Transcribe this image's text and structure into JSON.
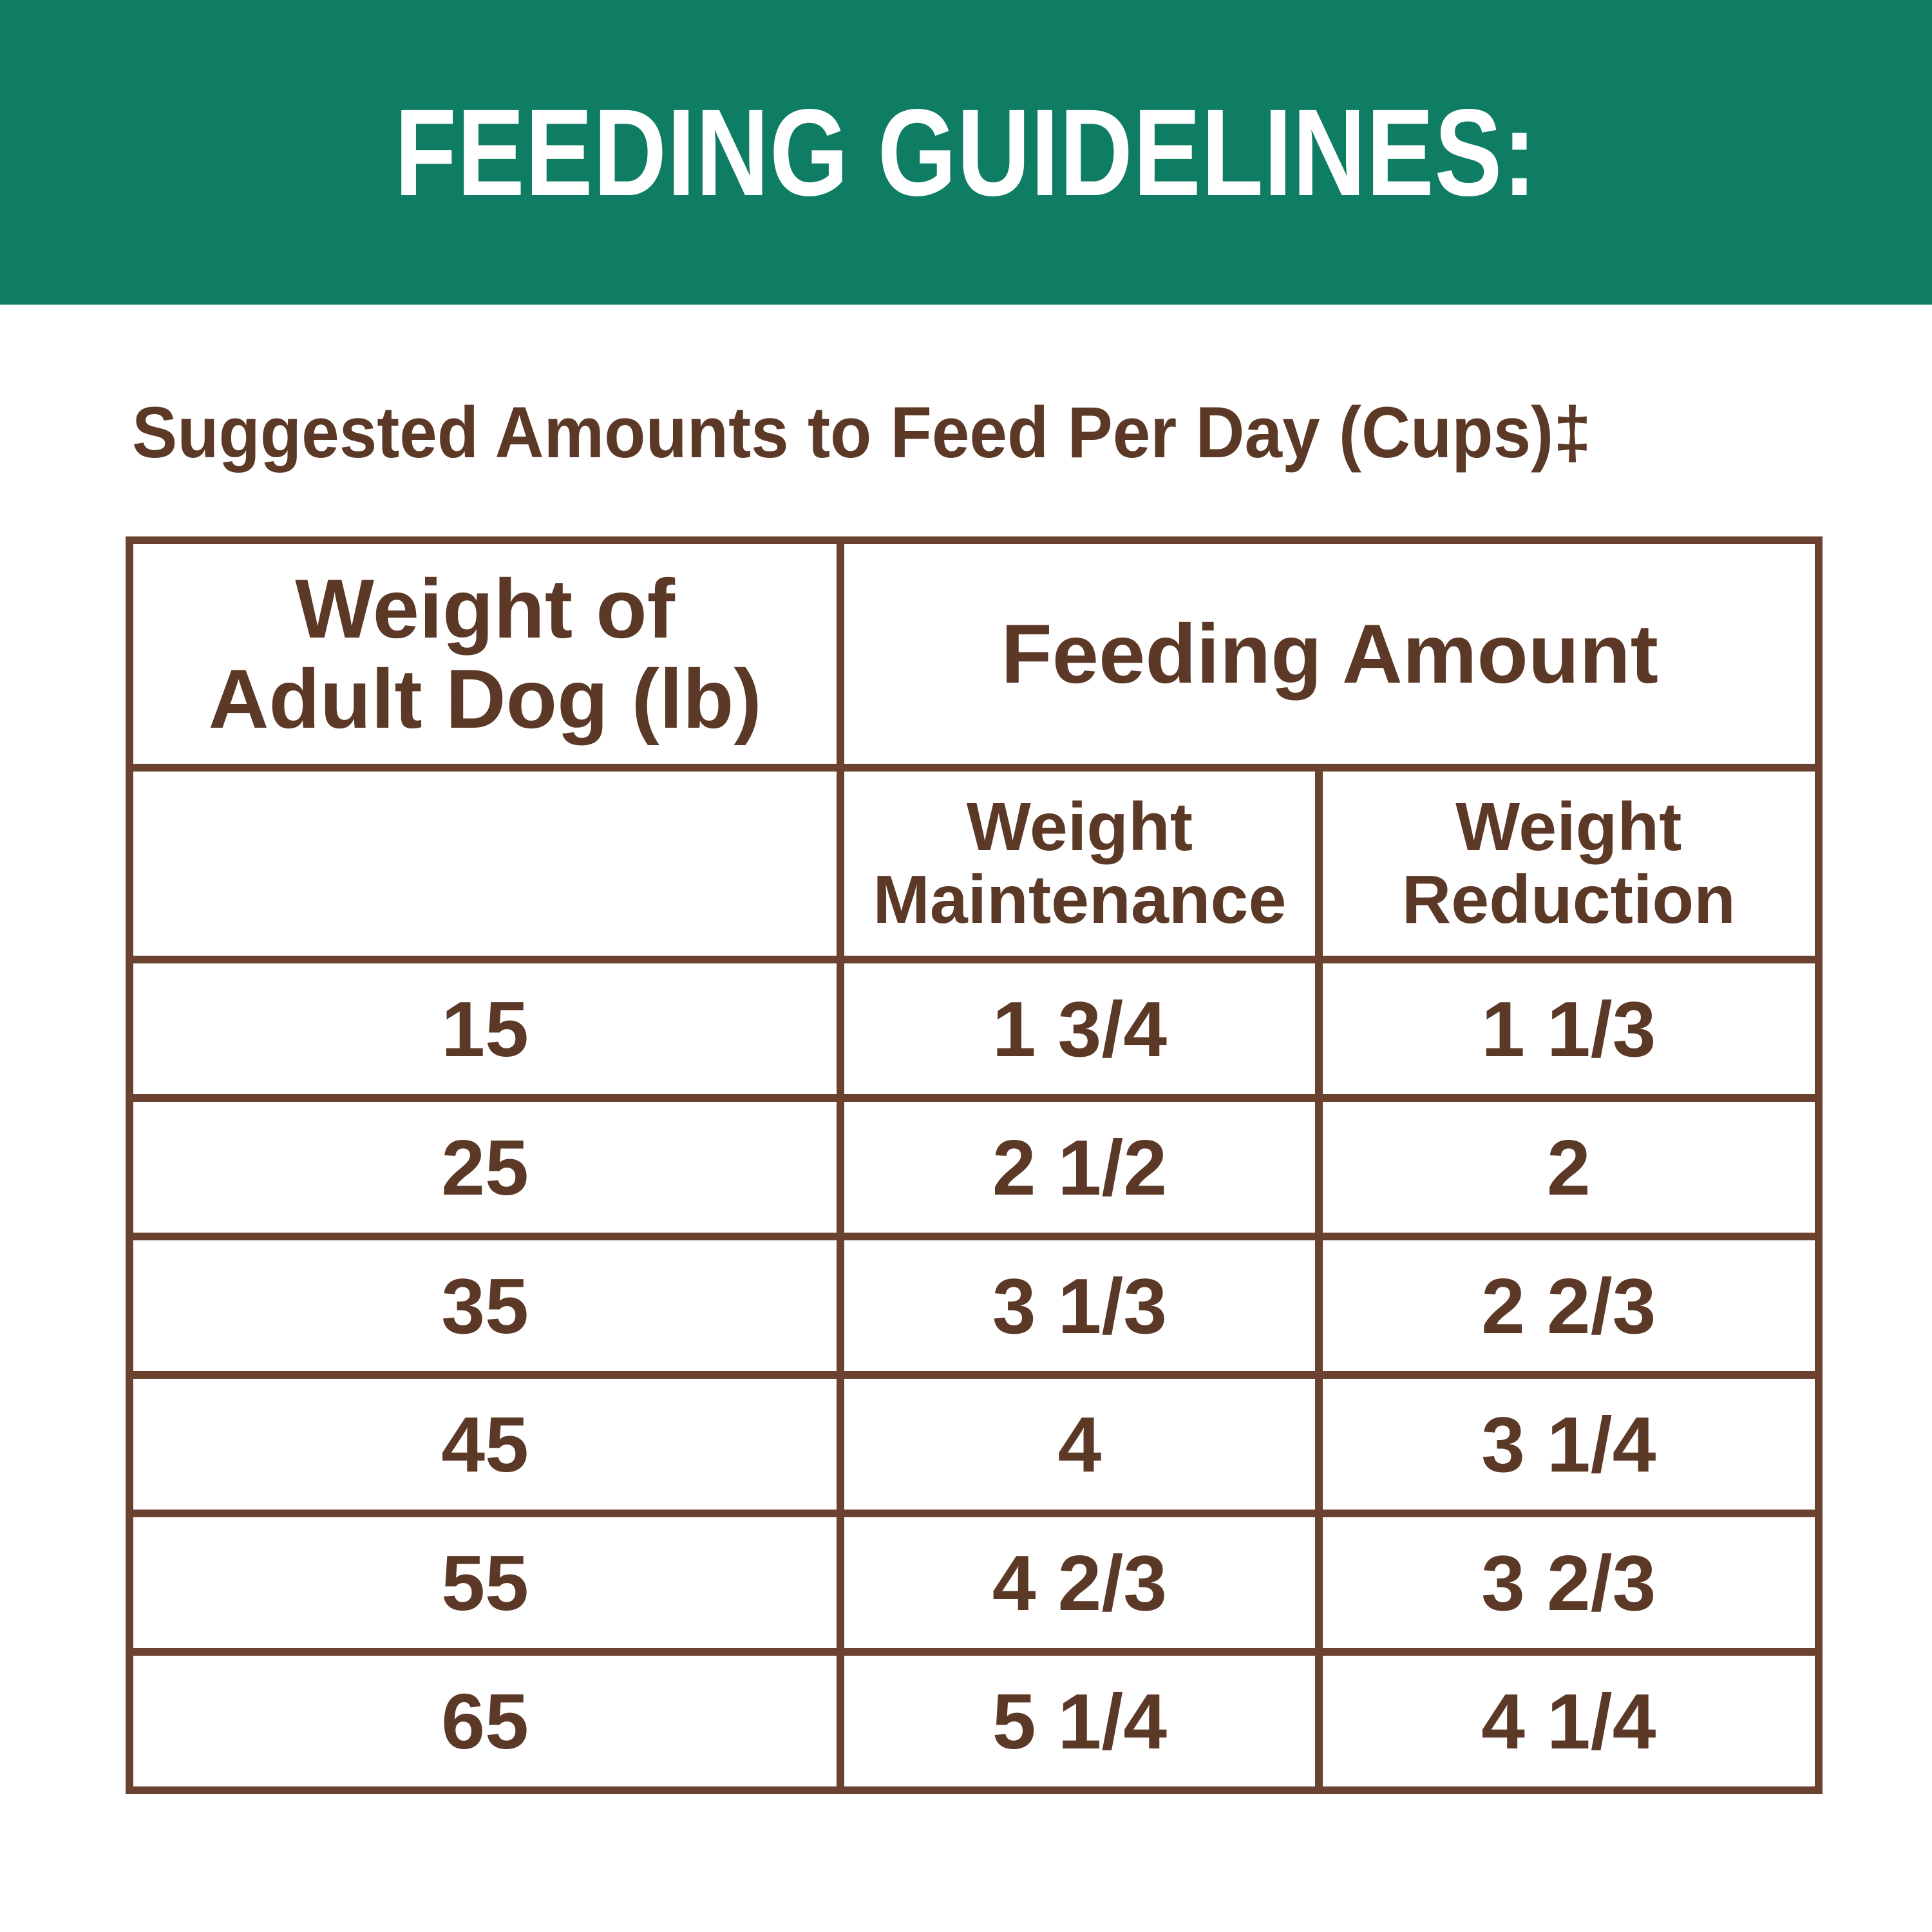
{
  "colors": {
    "banner_green": "#0E7D64",
    "text_brown": "#5C3826",
    "border_brown": "#6B4230",
    "background": "#FFFFFF",
    "banner_text": "#FFFFFF"
  },
  "banner": {
    "title": "FEEDING GUIDELINES:"
  },
  "subtitle": {
    "text": "Suggested Amounts to Feed Per Day (Cups)‡"
  },
  "table": {
    "header": {
      "weight_col_line1": "Weight of",
      "weight_col_line2": "Adult Dog (lb)",
      "feeding_amount": "Feeding Amount",
      "maintenance_line1": "Weight",
      "maintenance_line2": "Maintenance",
      "reduction_line1": "Weight",
      "reduction_line2": "Reduction"
    },
    "rows": [
      {
        "weight": "15",
        "maintenance": "1 3/4",
        "reduction": "1 1/3"
      },
      {
        "weight": "25",
        "maintenance": "2 1/2",
        "reduction": "2"
      },
      {
        "weight": "35",
        "maintenance": "3 1/3",
        "reduction": "2 2/3"
      },
      {
        "weight": "45",
        "maintenance": "4",
        "reduction": "3 1/4"
      },
      {
        "weight": "55",
        "maintenance": "4 2/3",
        "reduction": "3 2/3"
      },
      {
        "weight": "65",
        "maintenance": "5 1/4",
        "reduction": "4 1/4"
      }
    ]
  }
}
